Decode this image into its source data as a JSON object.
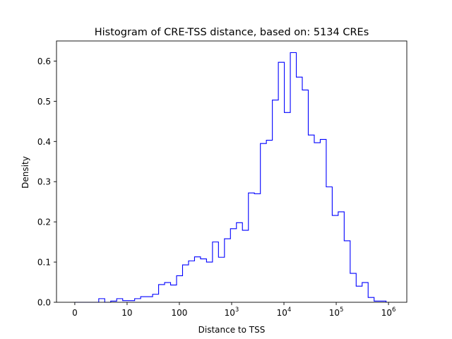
{
  "chart_data": {
    "type": "histogram",
    "title": "Histogram of CRE-TSS distance, based on: 5134 CREs",
    "xlabel": "Distance to TSS",
    "ylabel": "Density",
    "x_scale": "log10(distance + 1)",
    "xlim": [
      0,
      6
    ],
    "ylim": [
      0,
      0.65
    ],
    "x_ticks": [
      {
        "value": 0,
        "label": "0",
        "base": "",
        "exp": ""
      },
      {
        "value": 1,
        "label": "10",
        "base": "",
        "exp": ""
      },
      {
        "value": 2,
        "label": "100",
        "base": "",
        "exp": ""
      },
      {
        "value": 3,
        "label": "",
        "base": "10",
        "exp": "3"
      },
      {
        "value": 4,
        "label": "",
        "base": "10",
        "exp": "4"
      },
      {
        "value": 5,
        "label": "",
        "base": "10",
        "exp": "5"
      },
      {
        "value": 6,
        "label": "",
        "base": "10",
        "exp": "6"
      }
    ],
    "y_ticks": [
      {
        "value": 0.0,
        "label": "0.0"
      },
      {
        "value": 0.1,
        "label": "0.1"
      },
      {
        "value": 0.2,
        "label": "0.2"
      },
      {
        "value": 0.3,
        "label": "0.3"
      },
      {
        "value": 0.4,
        "label": "0.4"
      },
      {
        "value": 0.5,
        "label": "0.5"
      },
      {
        "value": 0.6,
        "label": "0.6"
      }
    ],
    "bin_start": 0,
    "bin_width": 0.1145,
    "bin_values": [
      0.0,
      0.0,
      0.0,
      0.0,
      0.009,
      0.0,
      0.003,
      0.009,
      0.004,
      0.004,
      0.009,
      0.014,
      0.014,
      0.02,
      0.044,
      0.049,
      0.043,
      0.066,
      0.093,
      0.103,
      0.113,
      0.108,
      0.1,
      0.15,
      0.112,
      0.158,
      0.183,
      0.198,
      0.179,
      0.272,
      0.27,
      0.395,
      0.403,
      0.503,
      0.597,
      0.472,
      0.621,
      0.56,
      0.528,
      0.416,
      0.397,
      0.405,
      0.287,
      0.216,
      0.225,
      0.153,
      0.072,
      0.04,
      0.049,
      0.012,
      0.003,
      0.003
    ],
    "color": "#0000ff",
    "grid": false
  }
}
